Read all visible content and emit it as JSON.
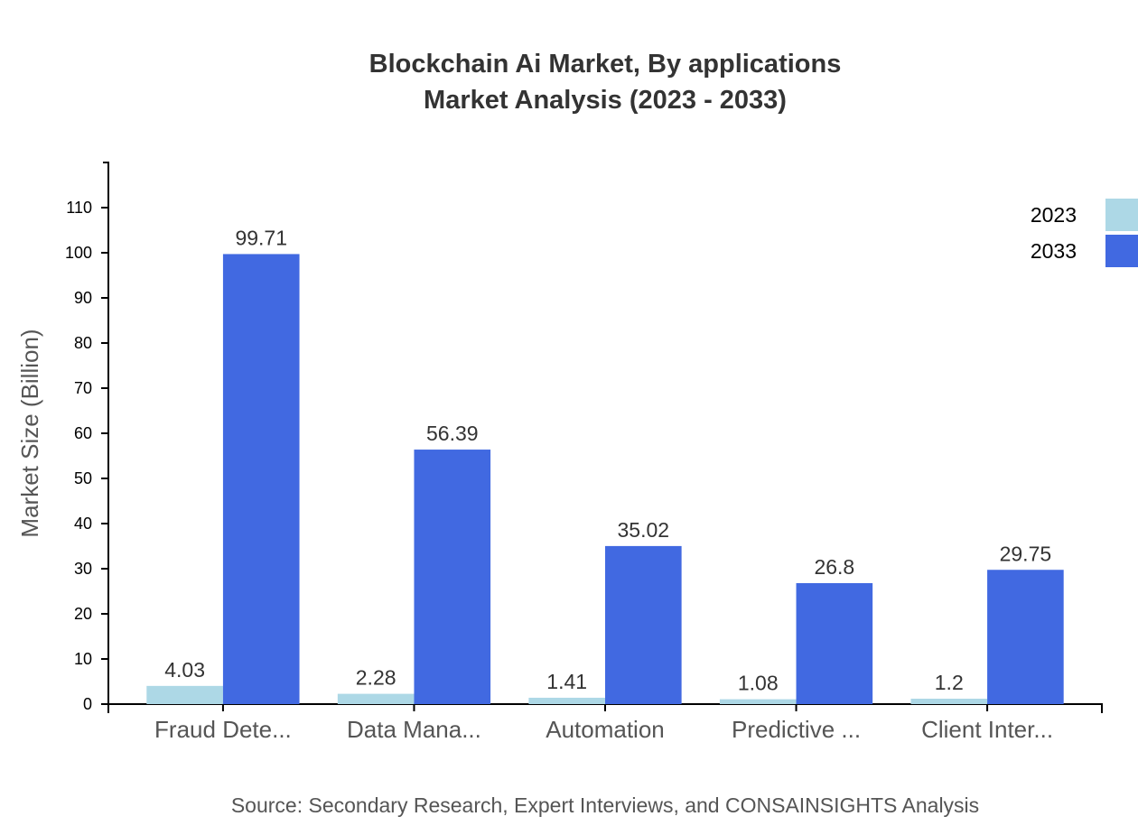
{
  "chart_data": {
    "type": "bar",
    "title": "Blockchain Ai Market, By applications",
    "subtitle": "Market Analysis (2023 - 2033)",
    "ylabel": "Market Size (Billion)",
    "xlabel": "",
    "source": "Source: Secondary Research, Expert Interviews, and CONSAINSIGHTS Analysis",
    "categories": [
      "Fraud Dete...",
      "Data Mana...",
      "Automation",
      "Predictive ...",
      "Client Inter..."
    ],
    "series": [
      {
        "name": "2023",
        "color": "#ADD8E6",
        "values": [
          4.03,
          2.28,
          1.41,
          1.08,
          1.2
        ]
      },
      {
        "name": "2033",
        "color": "#4169E1",
        "values": [
          99.71,
          56.39,
          35.02,
          26.8,
          29.75
        ]
      }
    ],
    "ylim": [
      0,
      120
    ],
    "yticks": [
      0,
      10,
      20,
      30,
      40,
      50,
      60,
      70,
      80,
      90,
      100,
      110
    ],
    "grid": false,
    "legend_position": "top-right"
  }
}
